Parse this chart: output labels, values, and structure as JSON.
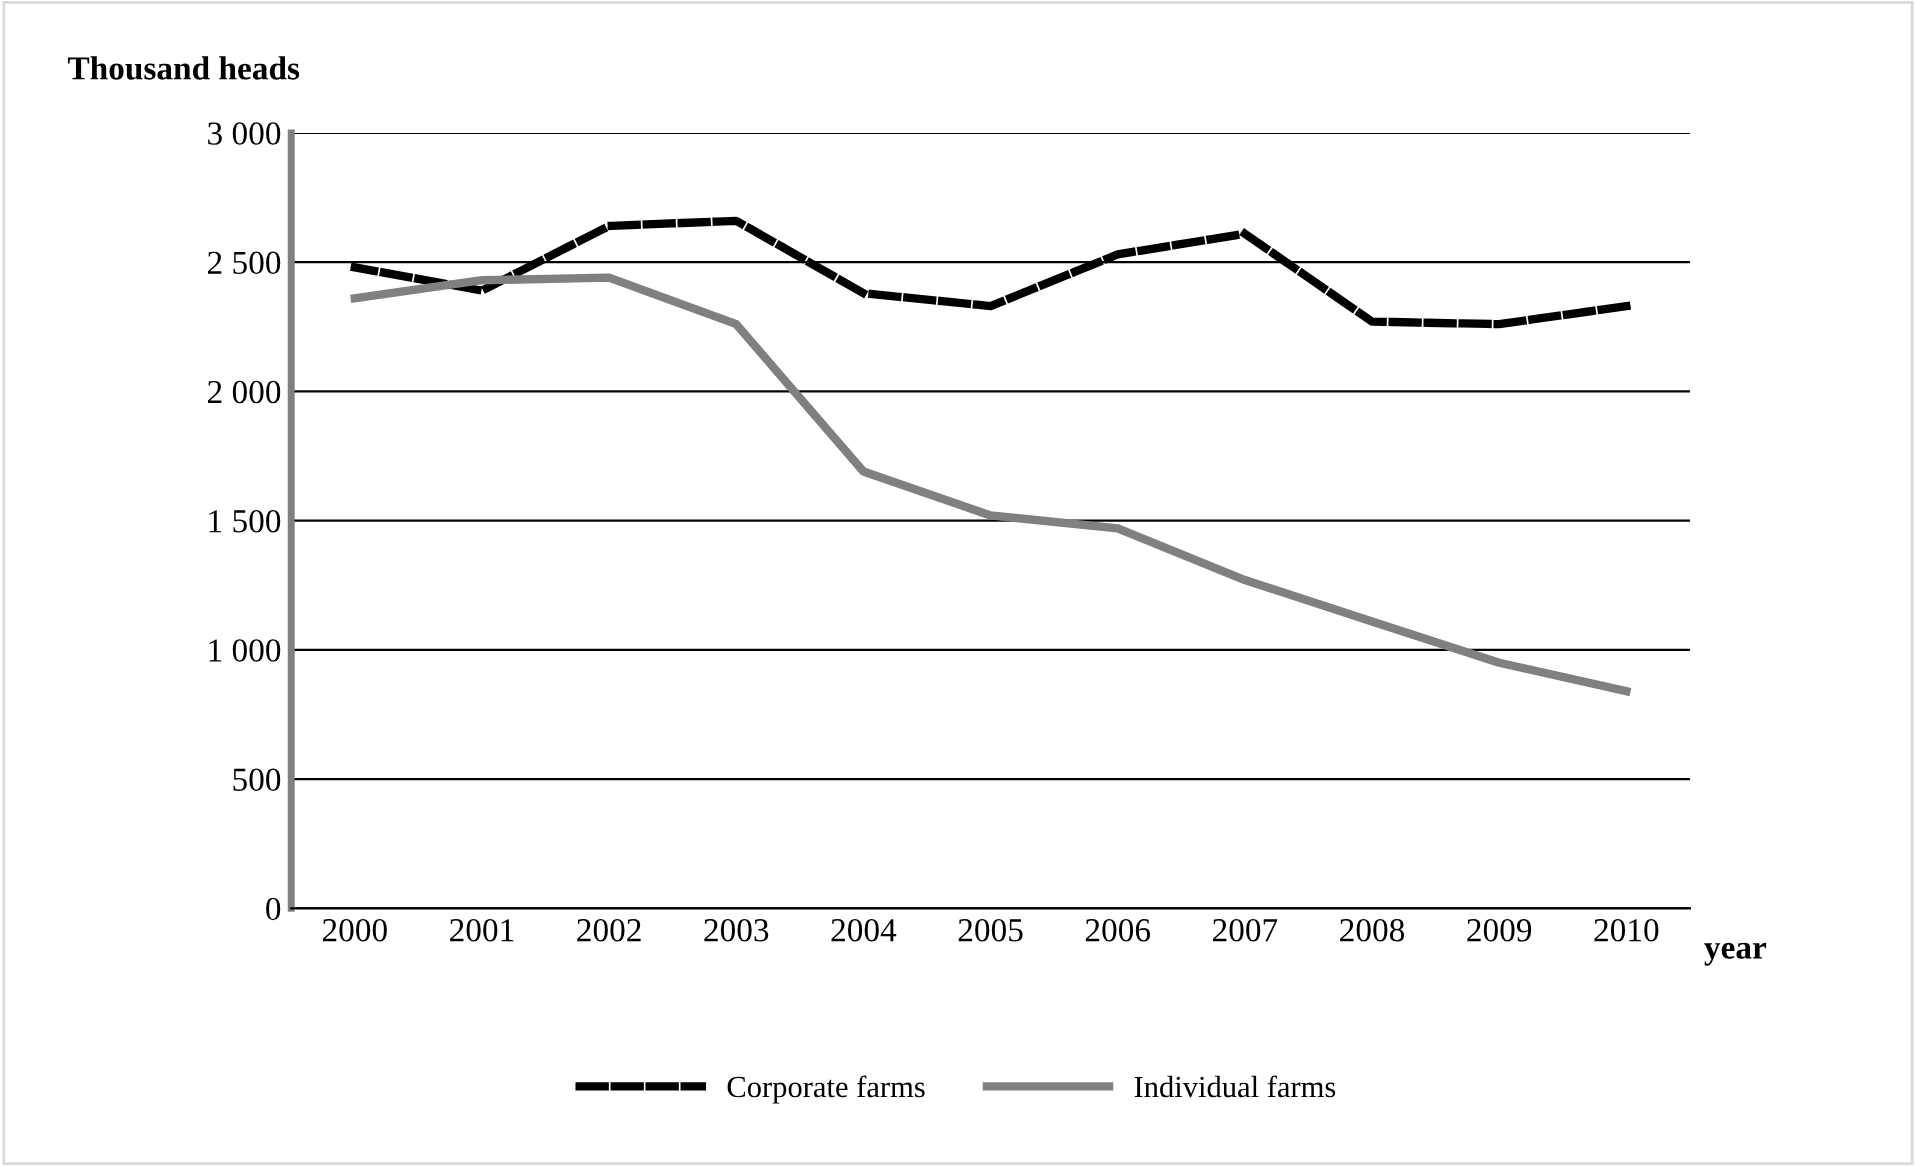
{
  "chart_data": {
    "type": "line",
    "ylabel": "Thousand heads",
    "xlabel": "year",
    "categories": [
      "2000",
      "2001",
      "2002",
      "2003",
      "2004",
      "2005",
      "2006",
      "2007",
      "2008",
      "2009",
      "2010"
    ],
    "series": [
      {
        "name": "Corporate farms",
        "color": "#000000",
        "line_style": "dashed",
        "values": [
          2480,
          2390,
          2640,
          2660,
          2380,
          2330,
          2530,
          2610,
          2270,
          2260,
          2330
        ]
      },
      {
        "name": "Individual farms",
        "color": "#808080",
        "line_style": "solid",
        "values": [
          2360,
          2430,
          2440,
          2260,
          1690,
          1520,
          1470,
          1270,
          1110,
          950,
          840
        ]
      }
    ],
    "ylim": [
      0,
      3000
    ],
    "yticks": [
      0,
      500,
      {
        "value": 1000,
        "label": "1 000"
      },
      {
        "value": 1500,
        "label": "1 500"
      },
      {
        "value": 2000,
        "label": "2 000"
      },
      {
        "value": 2500,
        "label": "2 500"
      },
      {
        "value": 3000,
        "label": "3 000"
      }
    ],
    "grid": "y",
    "legend": "bottom",
    "marker": "none"
  }
}
